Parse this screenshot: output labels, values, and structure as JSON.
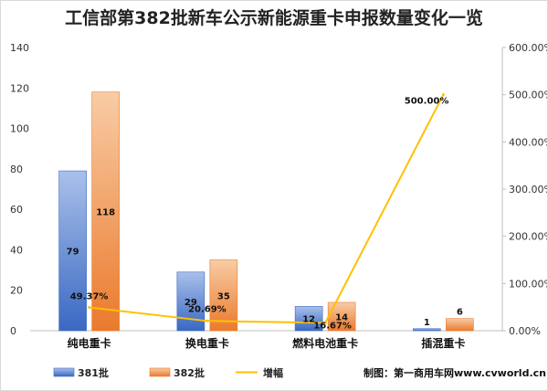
{
  "chart_data": {
    "type": "bar",
    "title": "工信部第382批新车公示新能源重卡申报数量变化一览",
    "categories": [
      "纯电重卡",
      "换电重卡",
      "燃料电池重卡",
      "插混重卡"
    ],
    "series": [
      {
        "name": "381批",
        "type": "bar",
        "axis": "left",
        "values": [
          79,
          29,
          12,
          1
        ],
        "color": "#4472c4"
      },
      {
        "name": "382批",
        "type": "bar",
        "axis": "left",
        "values": [
          118,
          35,
          14,
          6
        ],
        "color": "#ed7d31"
      },
      {
        "name": "增幅",
        "type": "line",
        "axis": "right",
        "values": [
          49.37,
          20.69,
          16.67,
          500.0
        ],
        "labels": [
          "49.37%",
          "20.69%",
          "16.67%",
          "500.00%"
        ],
        "color": "#ffc000"
      }
    ],
    "ylim": [
      0,
      140
    ],
    "yticks": [
      "0",
      "20",
      "40",
      "60",
      "80",
      "100",
      "120",
      "140"
    ],
    "y2lim": [
      0,
      600
    ],
    "y2ticks": [
      "0.00%",
      "100.00%",
      "200.00%",
      "300.00%",
      "400.00%",
      "500.00%",
      "600.00%"
    ],
    "legend_position": "bottom",
    "grid": false
  },
  "credit": "制图：第一商用车网www.cvworld.cn"
}
